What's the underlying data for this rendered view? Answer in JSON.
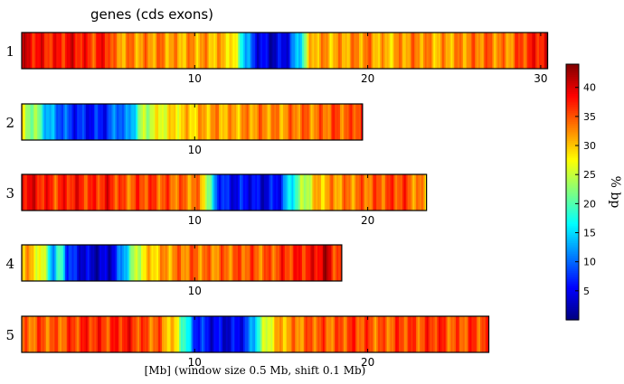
{
  "chart_data": {
    "type": "heatmap",
    "title": "genes (cds exons)",
    "xlabel": "[Mb] (window size 0.5 Mb, shift 0.1 Mb)",
    "colorbar": {
      "label": "% bp",
      "range": [
        0,
        44
      ],
      "ticks": [
        5,
        10,
        15,
        20,
        25,
        30,
        35,
        40
      ],
      "colormap": "jet"
    },
    "chromosomes": [
      {
        "name": "1",
        "length_mb": 30.4,
        "x_ticks": [
          10,
          20,
          30
        ],
        "profile": [
          [
            0,
            40
          ],
          [
            1,
            38
          ],
          [
            2,
            37
          ],
          [
            3,
            39
          ],
          [
            4,
            36
          ],
          [
            5,
            38
          ],
          [
            5.5,
            31
          ],
          [
            6,
            33
          ],
          [
            7,
            32
          ],
          [
            8,
            33
          ],
          [
            9,
            31
          ],
          [
            10,
            32
          ],
          [
            11,
            31
          ],
          [
            12,
            30
          ],
          [
            12.5,
            24
          ],
          [
            13,
            12
          ],
          [
            13.7,
            5
          ],
          [
            14.5,
            3
          ],
          [
            15.3,
            5
          ],
          [
            16,
            14
          ],
          [
            16.7,
            30
          ],
          [
            17,
            32
          ],
          [
            18,
            31
          ],
          [
            19,
            32
          ],
          [
            20,
            33
          ],
          [
            21,
            30
          ],
          [
            22,
            32
          ],
          [
            23,
            33
          ],
          [
            24,
            31
          ],
          [
            25,
            32
          ],
          [
            26,
            33
          ],
          [
            27,
            34
          ],
          [
            28,
            32
          ],
          [
            29,
            36
          ],
          [
            30,
            38
          ],
          [
            30.4,
            39
          ]
        ]
      },
      {
        "name": "2",
        "length_mb": 19.7,
        "x_ticks": [
          10
        ],
        "profile": [
          [
            0,
            26
          ],
          [
            1,
            21
          ],
          [
            1.5,
            13
          ],
          [
            2,
            11
          ],
          [
            3,
            7
          ],
          [
            4,
            6
          ],
          [
            5,
            7
          ],
          [
            5.5,
            12
          ],
          [
            6,
            9
          ],
          [
            6.5,
            16
          ],
          [
            7,
            24
          ],
          [
            8,
            27
          ],
          [
            9,
            29
          ],
          [
            10,
            30
          ],
          [
            11,
            32
          ],
          [
            12,
            31
          ],
          [
            13,
            32
          ],
          [
            14,
            33
          ],
          [
            15,
            32
          ],
          [
            16,
            34
          ],
          [
            17,
            33
          ],
          [
            18,
            35
          ],
          [
            19,
            34
          ],
          [
            19.7,
            38
          ]
        ]
      },
      {
        "name": "3",
        "length_mb": 23.4,
        "x_ticks": [
          10,
          20
        ],
        "profile": [
          [
            0,
            40
          ],
          [
            1,
            38
          ],
          [
            2,
            36
          ],
          [
            3,
            38
          ],
          [
            4,
            36
          ],
          [
            5,
            38
          ],
          [
            6,
            34
          ],
          [
            7,
            36
          ],
          [
            8,
            35
          ],
          [
            9,
            34
          ],
          [
            10,
            33
          ],
          [
            10.5,
            31
          ],
          [
            10.8,
            22
          ],
          [
            11.2,
            10
          ],
          [
            12,
            5
          ],
          [
            13,
            6
          ],
          [
            14,
            4
          ],
          [
            15,
            7
          ],
          [
            15.5,
            16
          ],
          [
            16,
            21
          ],
          [
            16.7,
            27
          ],
          [
            17,
            30
          ],
          [
            18,
            32
          ],
          [
            19,
            33
          ],
          [
            20,
            34
          ],
          [
            21,
            35
          ],
          [
            22,
            36
          ],
          [
            23,
            32
          ],
          [
            23.4,
            31
          ]
        ]
      },
      {
        "name": "4",
        "length_mb": 18.5,
        "x_ticks": [
          10
        ],
        "profile": [
          [
            0,
            32
          ],
          [
            1,
            28
          ],
          [
            1.5,
            21
          ],
          [
            1.8,
            12
          ],
          [
            2.3,
            20
          ],
          [
            2.6,
            9
          ],
          [
            3,
            6
          ],
          [
            4,
            3
          ],
          [
            5,
            3
          ],
          [
            5.5,
            7
          ],
          [
            6,
            15
          ],
          [
            6.5,
            23
          ],
          [
            7,
            28
          ],
          [
            8,
            31
          ],
          [
            9,
            33
          ],
          [
            10,
            34
          ],
          [
            11,
            33
          ],
          [
            12,
            34
          ],
          [
            13,
            35
          ],
          [
            14,
            34
          ],
          [
            15,
            36
          ],
          [
            16,
            37
          ],
          [
            17,
            38
          ],
          [
            17.5,
            42
          ],
          [
            18,
            37
          ],
          [
            18.5,
            35
          ]
        ]
      },
      {
        "name": "5",
        "length_mb": 27.0,
        "x_ticks": [
          10,
          20
        ],
        "profile": [
          [
            0,
            33
          ],
          [
            1,
            35
          ],
          [
            2,
            34
          ],
          [
            3,
            36
          ],
          [
            4,
            37
          ],
          [
            5,
            36
          ],
          [
            6,
            38
          ],
          [
            7,
            35
          ],
          [
            8,
            34
          ],
          [
            9,
            27
          ],
          [
            9.5,
            17
          ],
          [
            10,
            8
          ],
          [
            11,
            5
          ],
          [
            12,
            4
          ],
          [
            13,
            7
          ],
          [
            13.5,
            16
          ],
          [
            14,
            24
          ],
          [
            14.5,
            29
          ],
          [
            15,
            31
          ],
          [
            16,
            33
          ],
          [
            17,
            35
          ],
          [
            18,
            34
          ],
          [
            19,
            36
          ],
          [
            20,
            35
          ],
          [
            21,
            34
          ],
          [
            22,
            36
          ],
          [
            23,
            35
          ],
          [
            24,
            37
          ],
          [
            25,
            34
          ],
          [
            26,
            36
          ],
          [
            27,
            35
          ]
        ]
      }
    ]
  }
}
